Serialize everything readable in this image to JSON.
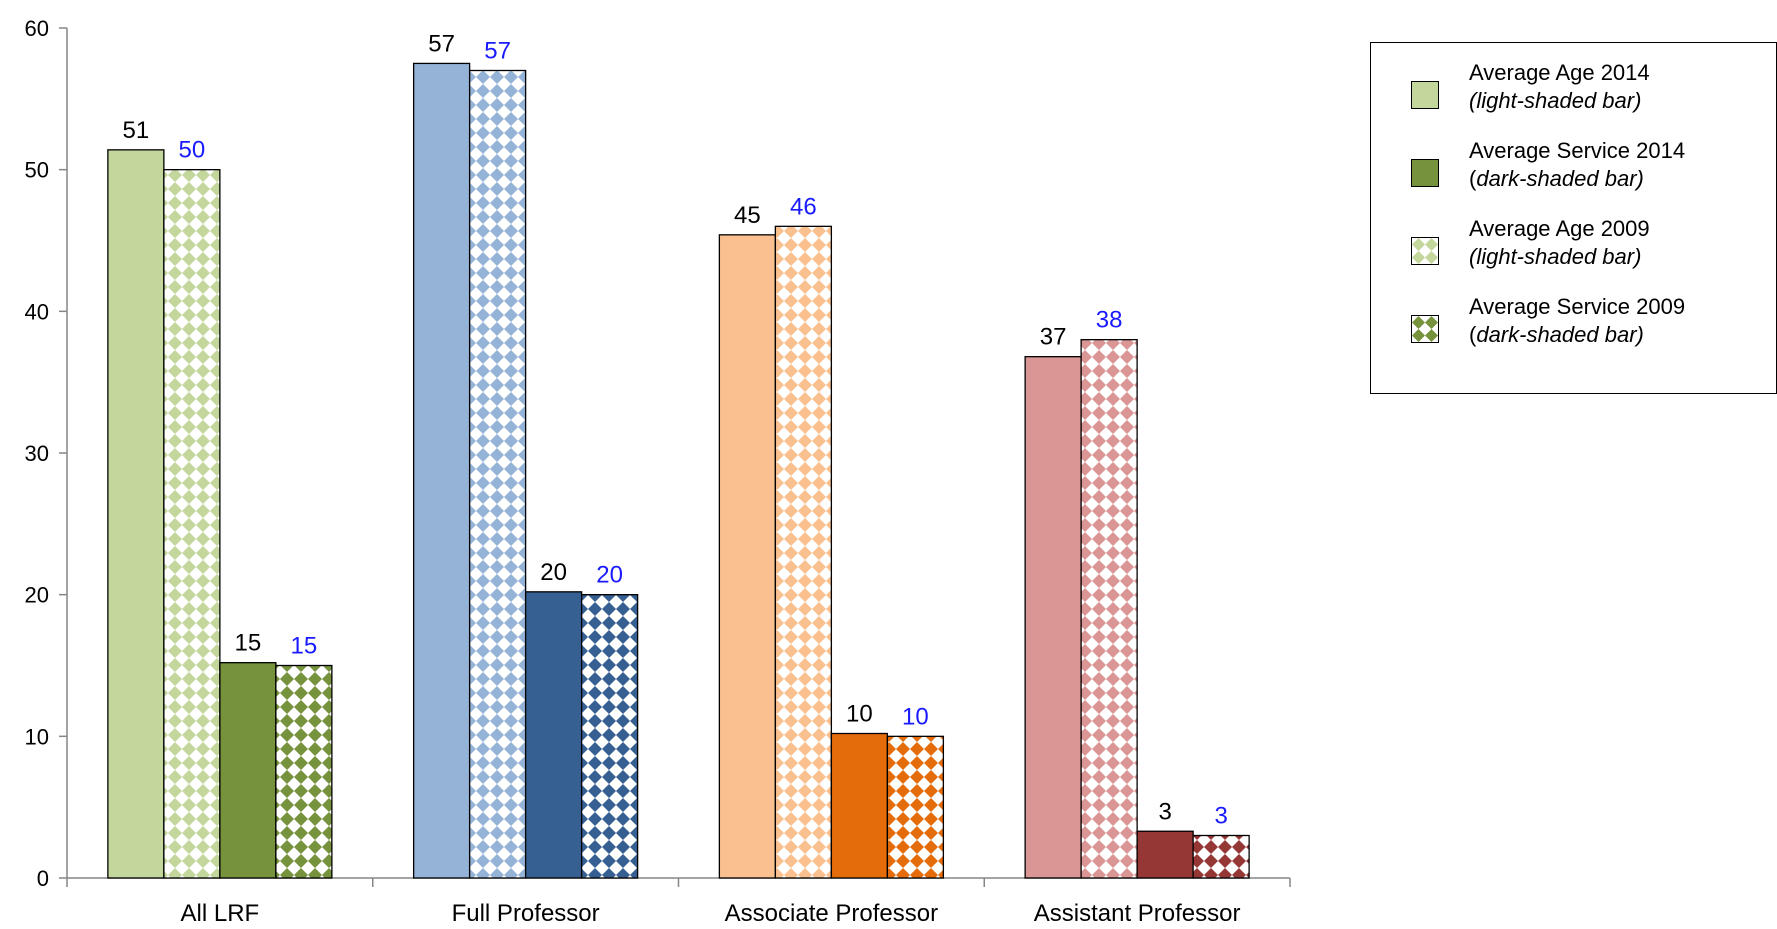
{
  "chart_data": {
    "type": "bar",
    "categories": [
      "All LRF",
      "Full Professor",
      "Associate Professor",
      "Assistant Professor"
    ],
    "ylim": [
      0,
      60
    ],
    "yticks": [
      0,
      10,
      20,
      30,
      40,
      50,
      60
    ],
    "grid": false,
    "legend_position": "top-right",
    "series": [
      {
        "key": "age2014",
        "values": [
          51.4,
          57.5,
          45.4,
          36.8
        ],
        "labels": [
          "51",
          "57",
          "45",
          "37"
        ],
        "label_color": "#000000",
        "pattern": "solid",
        "shade": "light"
      },
      {
        "key": "age2009",
        "values": [
          50,
          57,
          46,
          38
        ],
        "labels": [
          "50",
          "57",
          "46",
          "38"
        ],
        "label_color": "#1a1aff",
        "pattern": "checker",
        "shade": "light"
      },
      {
        "key": "service2014",
        "values": [
          15.2,
          20.2,
          10.2,
          3.3
        ],
        "labels": [
          "15",
          "20",
          "10",
          "3"
        ],
        "label_color": "#000000",
        "pattern": "solid",
        "shade": "dark"
      },
      {
        "key": "service2009",
        "values": [
          15,
          20,
          10,
          3
        ],
        "labels": [
          "15",
          "20",
          "10",
          "3"
        ],
        "label_color": "#1a1aff",
        "pattern": "checker",
        "shade": "dark"
      }
    ],
    "category_colors": [
      {
        "light": "#c3d69b",
        "dark": "#76923c"
      },
      {
        "light": "#95b3d7",
        "dark": "#366092"
      },
      {
        "light": "#fac090",
        "dark": "#e46c0a"
      },
      {
        "light": "#d99694",
        "dark": "#953735"
      }
    ],
    "legend": [
      {
        "line1": "Average Age 2014",
        "line2_pre": "",
        "line2_italic": "(light-shaded bar)",
        "line2_post": "",
        "swatch_color": "#c3d69b",
        "pattern": "solid"
      },
      {
        "line1": "Average Service 2014",
        "line2_pre": "(",
        "line2_italic": "dark-shaded bar)",
        "line2_post": "",
        "swatch_color": "#76923c",
        "pattern": "solid"
      },
      {
        "line1": "Average Age 2009",
        "line2_pre": "",
        "line2_italic": "(light-shaded bar)",
        "line2_post": "",
        "swatch_color": "#c3d69b",
        "pattern": "checker"
      },
      {
        "line1": "Average Service 2009",
        "line2_pre": "(",
        "line2_italic": "dark-shaded bar)",
        "line2_post": "",
        "swatch_color": "#76923c",
        "pattern": "checker"
      }
    ]
  }
}
